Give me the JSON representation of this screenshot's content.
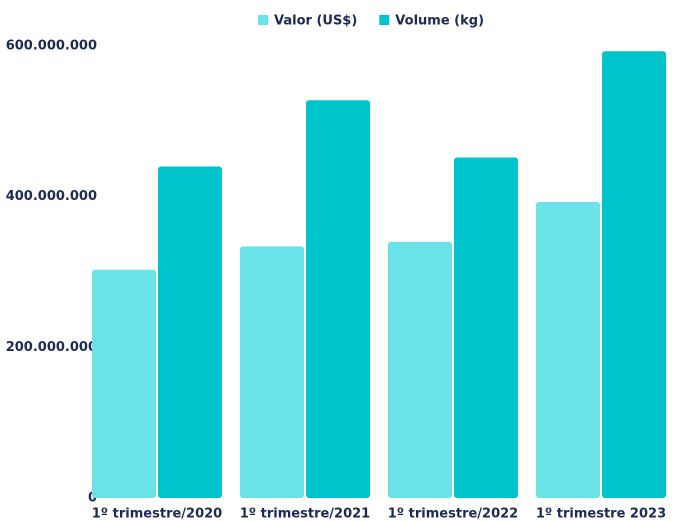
{
  "chart_data": {
    "type": "bar",
    "categories": [
      "1º trimestre/2020",
      "1º trimestre/2021",
      "1º trimestre/2022",
      "1º trimestre 2023"
    ],
    "series": [
      {
        "name": "Valor (US$)",
        "color": "#6ae3e8",
        "values": [
          303000000,
          334000000,
          340000000,
          393000000
        ]
      },
      {
        "name": "Volume (kg)",
        "color": "#00c4cc",
        "values": [
          440000000,
          528000000,
          452000000,
          593000000
        ]
      }
    ],
    "ylim": [
      0,
      600000000
    ],
    "yticks": [
      0,
      {
        "value": 200000000,
        "label": "200.000.000"
      },
      {
        "value": 400000000,
        "label": "400.000.000"
      },
      {
        "value": 600000000,
        "label": "600.000.000"
      }
    ],
    "grid": false
  }
}
